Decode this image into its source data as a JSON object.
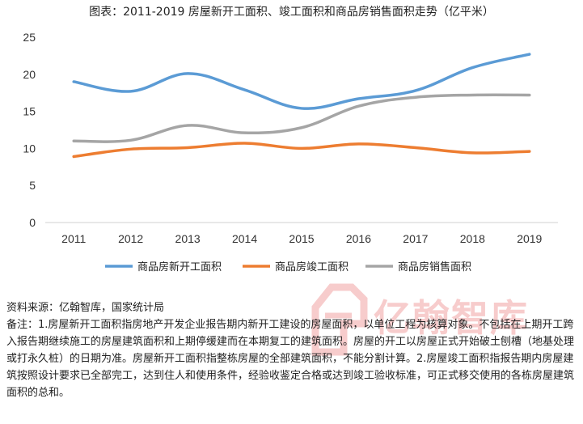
{
  "title": "图表：2011-2019 房屋新开工面积、竣工面积和商品房销售面积走势（亿平米）",
  "chart_data": {
    "type": "line",
    "title": "图表：2011-2019 房屋新开工面积、竣工面积和商品房销售面积走势（亿平米）",
    "categories": [
      "2011",
      "2012",
      "2013",
      "2014",
      "2015",
      "2016",
      "2017",
      "2018",
      "2019"
    ],
    "ylim": [
      0,
      25
    ],
    "yticks": [
      0,
      5,
      10,
      15,
      20,
      25
    ],
    "grid": false,
    "legend_position": "bottom",
    "series": [
      {
        "name": "商品房新开工面积",
        "color": "#5B9BD5",
        "values": [
          19.0,
          17.7,
          20.1,
          17.9,
          15.4,
          16.7,
          17.8,
          20.9,
          22.7
        ]
      },
      {
        "name": "商品房竣工面积",
        "color": "#ED7D31",
        "values": [
          8.9,
          9.9,
          10.1,
          10.7,
          10.0,
          10.6,
          10.1,
          9.4,
          9.6
        ]
      },
      {
        "name": "商品房销售面积",
        "color": "#A5A5A5",
        "values": [
          11.0,
          11.1,
          13.1,
          12.1,
          12.8,
          15.7,
          16.9,
          17.2,
          17.2
        ]
      }
    ]
  },
  "notes": {
    "source": "资料来源：亿翰智库，国家统计局",
    "remark": "备注：1.房屋新开工面积指房地产开发企业报告期内新开工建设的房屋面积，以单位工程为核算对象。不包括在上期开工跨入报告期继续施工的房屋建筑面积和上期停缓建而在本期复工的建筑面积。房屋的开工以房屋正式开始破土刨槽（地基处理或打永久桩）的日期为准。房屋新开工面积指整栋房屋的全部建筑面积，不能分割计算。2.房屋竣工面积指报告期内房屋建筑按照设计要求已全部完工，达到住人和使用条件，经验收鉴定合格或达到竣工验收标准，可正式移交使用的各栋房屋建筑面积的总和。"
  },
  "watermark": {
    "text": "亿翰智库",
    "color": "#e34b4b"
  }
}
